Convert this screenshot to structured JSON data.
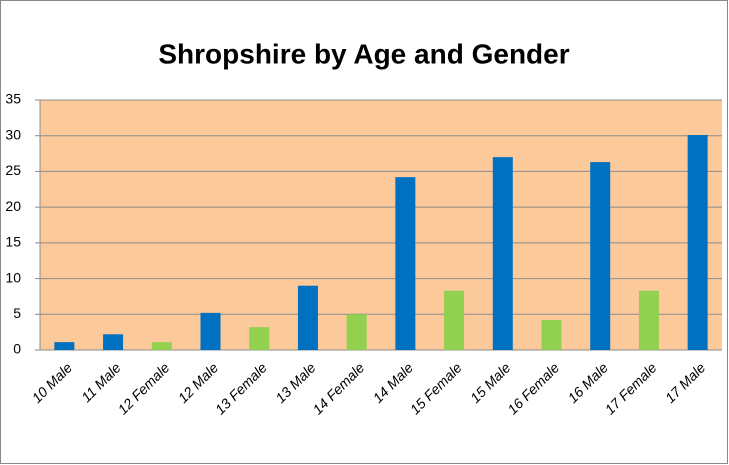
{
  "chart_data": {
    "type": "bar",
    "title": "Shropshire by Age and Gender",
    "categories": [
      "10 Male",
      "11 Male",
      "12 Female",
      "12 Male",
      "13 Female",
      "13 Male",
      "14 Female",
      "14 Male",
      "15 Female",
      "15 Male",
      "16 Female",
      "16 Male",
      "17 Female",
      "17 Male"
    ],
    "values": [
      1.1,
      2.2,
      1.1,
      5.2,
      3.2,
      9,
      5,
      24.2,
      8.3,
      27,
      4.2,
      26.3,
      8.3,
      30.1
    ],
    "colors": [
      "#0070c0",
      "#0070c0",
      "#92d050",
      "#0070c0",
      "#92d050",
      "#0070c0",
      "#92d050",
      "#0070c0",
      "#92d050",
      "#0070c0",
      "#92d050",
      "#0070c0",
      "#92d050",
      "#0070c0"
    ],
    "ylim": [
      0,
      35
    ],
    "yticks": [
      0,
      5,
      10,
      15,
      20,
      25,
      30,
      35
    ],
    "grid": true
  }
}
